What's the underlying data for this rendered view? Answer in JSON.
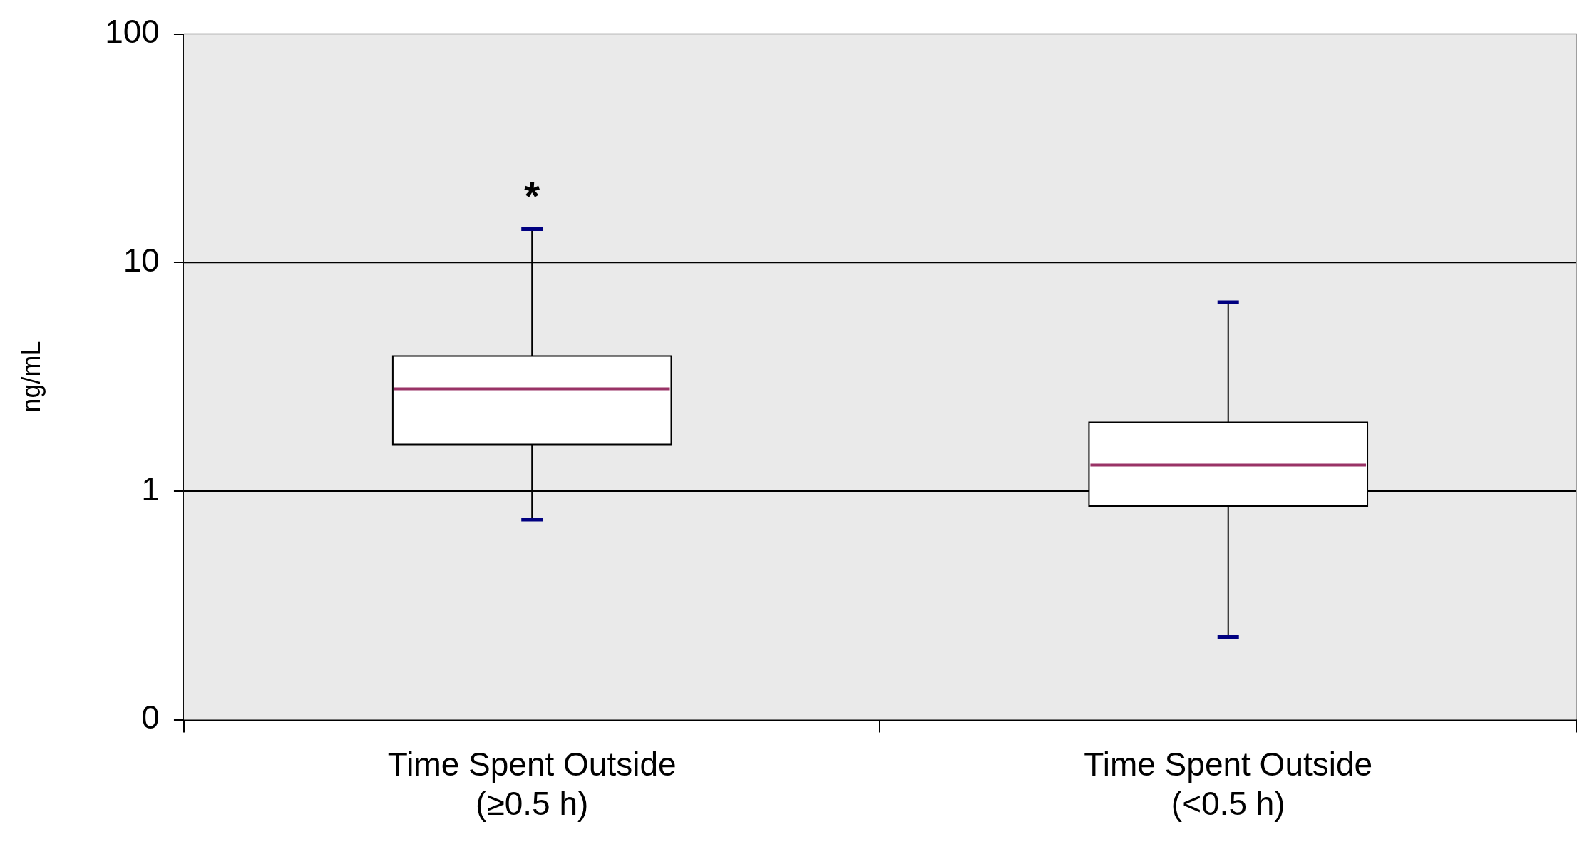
{
  "chart_data": {
    "type": "box",
    "ylabel": "ng/mL",
    "categories": [
      "Time Spent Outside (≥0.5 h)",
      "Time Spent Outside (<0.5 h)"
    ],
    "boxes": [
      {
        "low": 0.75,
        "q1": 1.6,
        "median": 2.8,
        "q3": 3.9,
        "high": 14
      },
      {
        "low": 0.23,
        "q1": 0.86,
        "median": 1.3,
        "q3": 2.0,
        "high": 6.7
      }
    ],
    "log": true,
    "ylim": [
      0.1,
      100
    ],
    "yticks": [
      {
        "value": 0.1,
        "label": "0"
      },
      1,
      10,
      100
    ],
    "grid": "y",
    "legend": false,
    "annotations": [
      "*"
    ]
  }
}
